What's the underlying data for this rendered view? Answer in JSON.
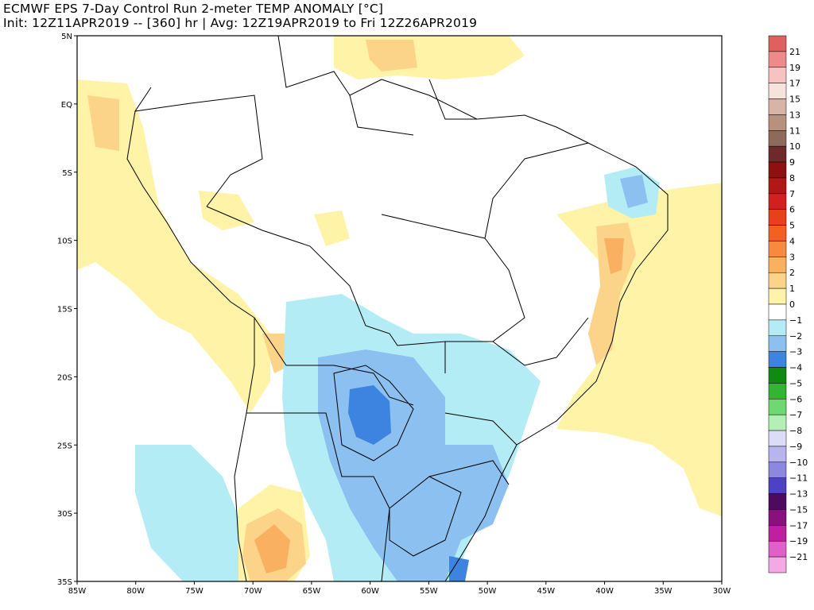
{
  "header": {
    "title_line1": "ECMWF EPS 7-Day Control Run 2-meter TEMP ANOMALY [°C]",
    "title_line2": "Init: 12Z11APR2019 -- [360] hr | Avg: 12Z19APR2019 to Fri 12Z26APR2019"
  },
  "map": {
    "region": "South America",
    "lat_range": [
      -35,
      5
    ],
    "lon_range": [
      -85,
      -30
    ],
    "lat_labels": [
      "5N",
      "EQ",
      "5S",
      "10S",
      "15S",
      "20S",
      "25S",
      "30S",
      "35S"
    ],
    "lon_labels": [
      "85W",
      "80W",
      "75W",
      "70W",
      "65W",
      "60W",
      "55W",
      "50W",
      "45W",
      "40W",
      "35W",
      "30W"
    ]
  },
  "colorbar": {
    "labels": [
      "21",
      "19",
      "17",
      "15",
      "13",
      "11",
      "10",
      "9",
      "8",
      "7",
      "6",
      "5",
      "4",
      "3",
      "2",
      "1",
      "0",
      "−1",
      "−2",
      "−3",
      "−4",
      "−5",
      "−6",
      "−7",
      "−8",
      "−9",
      "−10",
      "−11",
      "−13",
      "−15",
      "−17",
      "−19",
      "−21"
    ],
    "colors": [
      "#e06060",
      "#ee8a8a",
      "#f7c2c2",
      "#f4e4dc",
      "#d8b4a6",
      "#b8907e",
      "#8e6a5a",
      "#6e2a2a",
      "#8e1010",
      "#b01818",
      "#d22020",
      "#e84018",
      "#f46020",
      "#f88a40",
      "#f9b060",
      "#fbd48a",
      "#fff3a8",
      "#ffffff",
      "#b4ecf6",
      "#8cc0f0",
      "#3c84e0",
      "#108a10",
      "#34b434",
      "#70d870",
      "#b4f0b4",
      "#dcdcf8",
      "#b8b4ee",
      "#8c88e0",
      "#4e42c4",
      "#4e0a5e",
      "#8a1080",
      "#c020a0",
      "#e060c8",
      "#f4a8e4"
    ]
  }
}
